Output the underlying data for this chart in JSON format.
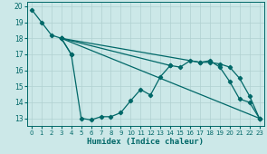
{
  "xlabel": "Humidex (Indice chaleur)",
  "xlim": [
    -0.5,
    23.5
  ],
  "ylim": [
    12.5,
    20.3
  ],
  "xticks": [
    0,
    1,
    2,
    3,
    4,
    5,
    6,
    7,
    8,
    9,
    10,
    11,
    12,
    13,
    14,
    15,
    16,
    17,
    18,
    19,
    20,
    21,
    22,
    23
  ],
  "yticks": [
    13,
    14,
    15,
    16,
    17,
    18,
    19,
    20
  ],
  "bg_color": "#cce8e8",
  "line_color": "#006868",
  "grid_color": "#b0d0d0",
  "lines": [
    {
      "x": [
        0,
        1,
        2,
        3,
        4
      ],
      "y": [
        19.8,
        19.0,
        18.2,
        18.0,
        17.0
      ]
    },
    {
      "x": [
        3,
        4,
        5,
        6,
        7,
        8,
        9,
        10,
        11,
        12,
        13,
        14
      ],
      "y": [
        18.0,
        17.0,
        13.0,
        12.9,
        13.1,
        13.1,
        13.35,
        14.1,
        14.8,
        14.45,
        15.6,
        16.3
      ]
    },
    {
      "x": [
        3,
        14,
        15,
        16,
        17,
        18,
        19,
        20,
        21,
        22,
        23
      ],
      "y": [
        18.0,
        16.3,
        16.2,
        16.6,
        16.5,
        16.6,
        16.2,
        15.3,
        14.2,
        14.0,
        13.0
      ]
    },
    {
      "x": [
        3,
        23
      ],
      "y": [
        18.0,
        13.0
      ]
    },
    {
      "x": [
        3,
        17,
        18,
        19,
        20,
        21,
        22,
        23
      ],
      "y": [
        18.0,
        16.5,
        16.5,
        16.4,
        16.2,
        15.5,
        14.4,
        13.0
      ]
    }
  ]
}
